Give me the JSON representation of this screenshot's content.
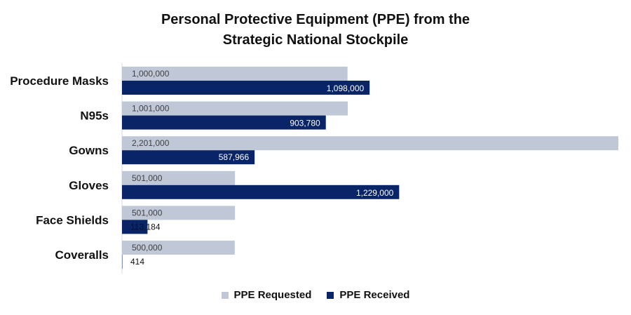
{
  "chart_data": {
    "type": "bar",
    "orientation": "horizontal",
    "title": "Personal Protective Equipment (PPE) from the Strategic National Stockpile",
    "title_lines": [
      "Personal Protective Equipment (PPE) from the",
      "Strategic National Stockpile"
    ],
    "categories": [
      "Procedure Masks",
      "N95s",
      "Gowns",
      "Gloves",
      "Face Shields",
      "Coveralls"
    ],
    "series": [
      {
        "name": "PPE Requested",
        "color": "#c0c8d8",
        "label_color": "#404040",
        "values": [
          1000000,
          1001000,
          2201000,
          501000,
          501000,
          500000
        ],
        "labels": [
          "1,000,000",
          "1,001,000",
          "2,201,000",
          "501,000",
          "501,000",
          "500,000"
        ]
      },
      {
        "name": "PPE Received",
        "color": "#0a2468",
        "label_color": "#ffffff",
        "values": [
          1098000,
          903780,
          587966,
          1229000,
          113184,
          414
        ],
        "labels": [
          "1,098,000",
          "903,780",
          "587,966",
          "1,229,000",
          "113,184",
          "414"
        ]
      }
    ],
    "xlim": [
      0,
      2201000
    ],
    "grid": false,
    "legend_position": "bottom"
  }
}
